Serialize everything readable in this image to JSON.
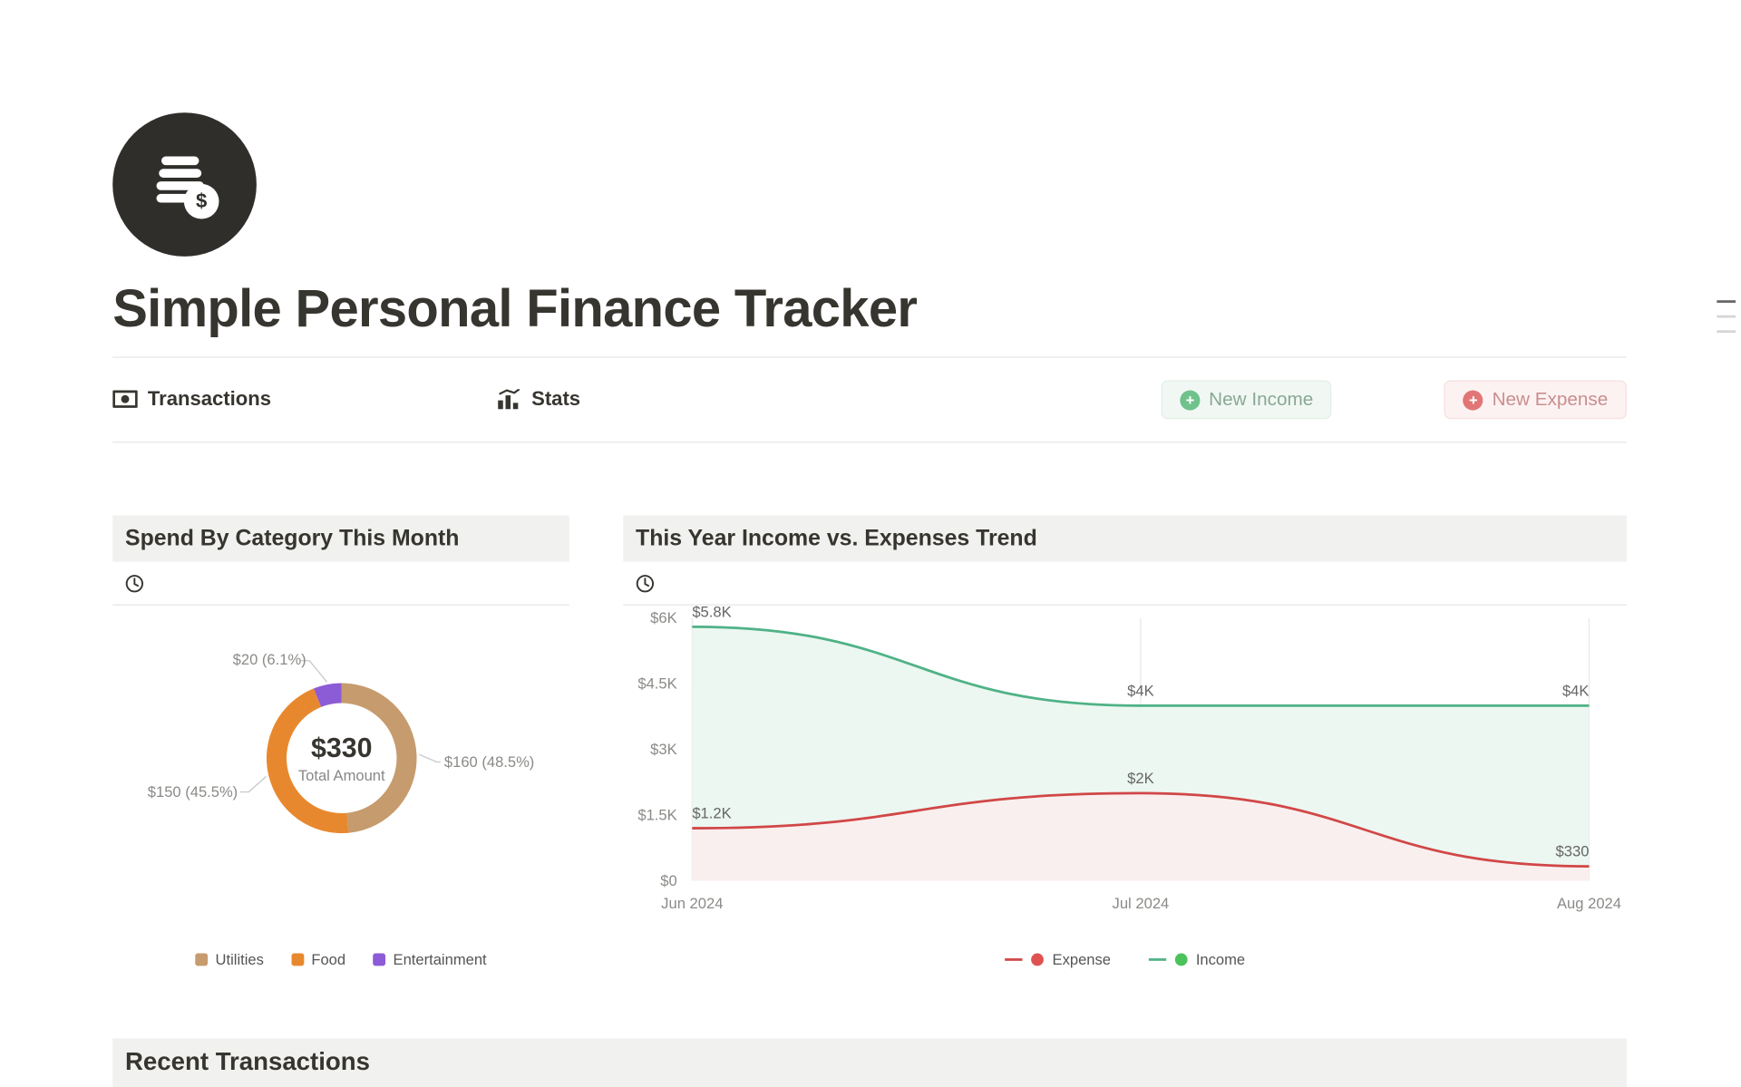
{
  "page": {
    "title": "Simple Personal Finance Tracker"
  },
  "nav": {
    "transactions_label": "Transactions",
    "stats_label": "Stats"
  },
  "buttons": {
    "new_income_label": "New Income",
    "new_expense_label": "New Expense"
  },
  "colors": {
    "text": "#37352f",
    "muted": "#8a8a87",
    "header_bg": "#f1f1ef",
    "divider": "#e9e9e7",
    "income_btn_bg": "#f1f8f4",
    "income_btn_fg": "#8aa795",
    "income_plus": "#6fc28b",
    "expense_btn_bg": "#fdf2f2",
    "expense_btn_fg": "#c98e8e",
    "expense_plus": "#e27676",
    "logo_bg": "#2f2e2b"
  },
  "spend_chart": {
    "title": "Spend By Category This Month",
    "type": "donut",
    "center_value": "$330",
    "center_label": "Total Amount",
    "total": 330,
    "inner_radius": 44,
    "outer_radius": 60,
    "slices": [
      {
        "name": "Utilities",
        "value": 160,
        "pct": "48.5%",
        "label": "$160 (48.5%)",
        "color": "#c69b6d"
      },
      {
        "name": "Food",
        "value": 150,
        "pct": "45.5%",
        "label": "$150 (45.5%)",
        "color": "#e8882e"
      },
      {
        "name": "Entertainment",
        "value": 20,
        "pct": "6.1%",
        "label": "$20 (6.1%)",
        "color": "#8c5bd6"
      }
    ],
    "legend_colors": {
      "Utilities": "#c69b6d",
      "Food": "#e8882e",
      "Entertainment": "#8c5bd6"
    }
  },
  "trend_chart": {
    "title": "This Year Income vs. Expenses Trend",
    "type": "area-line",
    "x_labels": [
      "Jun 2024",
      "Jul 2024",
      "Aug 2024"
    ],
    "y_ticks": [
      0,
      1500,
      3000,
      4500,
      6000
    ],
    "y_tick_labels": [
      "$0",
      "$1.5K",
      "$3K",
      "$4.5K",
      "$6K"
    ],
    "y_max": 6000,
    "series": [
      {
        "name": "Income",
        "color": "#4fb286",
        "fill": "#eaf6f0",
        "values": [
          5800,
          4000,
          4000
        ],
        "labels": [
          "$5.8K",
          "$4K",
          "$4K"
        ],
        "dot_color": "#4cc25a"
      },
      {
        "name": "Expense",
        "color": "#d14747",
        "fill": "#fbeeee",
        "values": [
          1200,
          2000,
          330
        ],
        "labels": [
          "$1.2K",
          "$2K",
          "$330"
        ],
        "dot_color": "#e05252"
      }
    ],
    "grid_color": "#eaeaea",
    "axis_color": "#8a8a87",
    "title_fontsize": 18
  },
  "recent": {
    "title": "Recent Transactions"
  }
}
